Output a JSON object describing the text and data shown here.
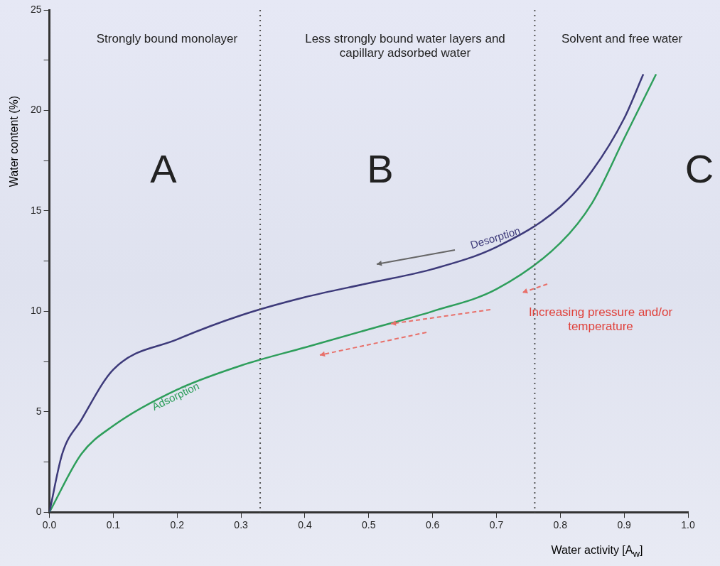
{
  "chart_data": {
    "type": "line",
    "xlabel": "Water activity [A$_{w}$]",
    "ylabel": "Water content (%)",
    "xlim": [
      0,
      1
    ],
    "ylim": [
      0,
      25
    ],
    "xticks": [
      {
        "value": 0,
        "label": "0.0"
      },
      0.1,
      0.2,
      0.3,
      0.4,
      0.5,
      0.6,
      0.7,
      0.8,
      0.9,
      {
        "value": 1,
        "label": "1.0"
      }
    ],
    "yticks": [
      0,
      {
        "value": 2.5,
        "label": null
      },
      5,
      {
        "value": 7.5,
        "label": null
      },
      10,
      {
        "value": 12.5,
        "label": null
      },
      15,
      {
        "value": 17.5,
        "label": null
      },
      20,
      {
        "value": 22.5,
        "label": null
      },
      25
    ],
    "grid": false,
    "legend": false,
    "marker": "none",
    "line_style": "solid",
    "series": [
      {
        "name": "Desorption",
        "color": "#3d3a7a",
        "x": [
          0,
          0.02,
          0.05,
          0.1,
          0.2,
          0.3,
          0.4,
          0.5,
          0.6,
          0.7,
          0.8,
          0.85,
          0.9,
          0.93
        ],
        "values": [
          0,
          2.9,
          4.6,
          7.1,
          8.6,
          9.8,
          10.7,
          11.4,
          12.1,
          13.2,
          15.2,
          17,
          19.6,
          21.8
        ]
      },
      {
        "name": "Adsorption",
        "color": "#2e9e5b",
        "x": [
          0,
          0.05,
          0.1,
          0.2,
          0.3,
          0.4,
          0.5,
          0.6,
          0.7,
          0.8,
          0.85,
          0.9,
          0.95
        ],
        "values": [
          0,
          2.9,
          4.3,
          6.1,
          7.3,
          8.2,
          9.1,
          10,
          11.1,
          13.4,
          15.4,
          18.6,
          21.8
        ]
      }
    ],
    "ref_lines": [
      {
        "axis": "x",
        "value": 0.33,
        "line_style": "dotted",
        "color": "#555555"
      },
      {
        "axis": "x",
        "value": 0.76,
        "line_style": "dotted",
        "color": "#555555"
      }
    ],
    "annotations": [
      "Strongly bound monolayer",
      "Less strongly bound water layers and capillary adsorbed water",
      "Solvent and free water",
      "A",
      "B",
      "C",
      "Increasing pressure and/or temperature"
    ]
  }
}
